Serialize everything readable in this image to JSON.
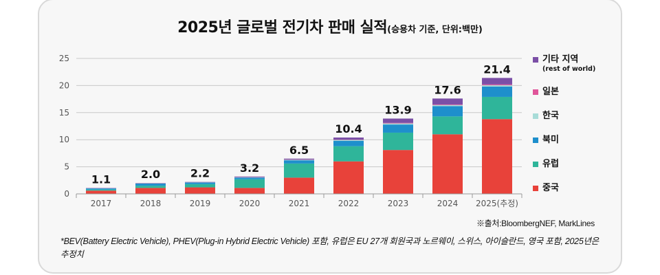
{
  "title": {
    "main": "2025년 글로벌 전기차 판매 실적",
    "sub": "(승용차 기준, 단위:백만)"
  },
  "legend": [
    {
      "key": "rest_of_world",
      "label": "기타 지역",
      "sublabel": "(rest of world)",
      "color": "#7b4fa6"
    },
    {
      "key": "japan",
      "label": "일본",
      "color": "#e0559a"
    },
    {
      "key": "korea",
      "label": "한국",
      "color": "#a8dcd8"
    },
    {
      "key": "north_america",
      "label": "북미",
      "color": "#1e8fcc"
    },
    {
      "key": "europe",
      "label": "유럽",
      "color": "#2fb59a"
    },
    {
      "key": "china",
      "label": "중국",
      "color": "#e8423a"
    }
  ],
  "source": "※출처:BloombergNEF, MarkLines",
  "note": "*BEV(Battery Electric Vehicle), PHEV(Plug-in Hybrid Electric Vehicle) 포함, 유럽은 EU 27개 회원국과 노르웨이, 스위스, 아이슬란드, 영국 포함, 2025년은 추정치",
  "chart_data": {
    "type": "bar",
    "stacked": true,
    "title": "2025년 글로벌 전기차 판매 실적",
    "subtitle": "(승용차 기준, 단위:백만)",
    "xlabel": "",
    "ylabel": "",
    "ylim": [
      0,
      25
    ],
    "yticks": [
      0,
      5,
      10,
      15,
      20,
      25
    ],
    "grid": true,
    "legend_position": "right",
    "categories": [
      "2017",
      "2018",
      "2019",
      "2020",
      "2021",
      "2022",
      "2023",
      "2024",
      "2025(추정)"
    ],
    "totals": [
      1.1,
      2.0,
      2.2,
      3.2,
      6.5,
      10.4,
      13.9,
      17.6,
      21.4
    ],
    "total_labels": [
      "1.1",
      "2.0",
      "2.2",
      "3.2",
      "6.5",
      "10.4",
      "13.9",
      "17.6",
      "21.4"
    ],
    "series": [
      {
        "name": "중국",
        "color": "#e8423a",
        "values": [
          0.6,
          1.1,
          1.2,
          1.1,
          3.0,
          6.0,
          8.1,
          11.0,
          13.8
        ]
      },
      {
        "name": "유럽",
        "color": "#2fb59a",
        "values": [
          0.2,
          0.4,
          0.6,
          1.6,
          2.6,
          2.8,
          3.2,
          3.3,
          4.1
        ]
      },
      {
        "name": "북미",
        "color": "#1e8fcc",
        "values": [
          0.2,
          0.4,
          0.3,
          0.3,
          0.6,
          1.0,
          1.5,
          1.9,
          1.9
        ]
      },
      {
        "name": "한국",
        "color": "#a8dcd8",
        "values": [
          0.03,
          0.03,
          0.03,
          0.05,
          0.1,
          0.15,
          0.2,
          0.2,
          0.25
        ]
      },
      {
        "name": "일본",
        "color": "#e0559a",
        "values": [
          0.02,
          0.02,
          0.02,
          0.03,
          0.04,
          0.05,
          0.1,
          0.1,
          0.15
        ]
      },
      {
        "name": "기타 지역(rest of world)",
        "color": "#7b4fa6",
        "values": [
          0.05,
          0.05,
          0.05,
          0.12,
          0.16,
          0.4,
          0.8,
          1.1,
          1.2
        ]
      }
    ]
  }
}
